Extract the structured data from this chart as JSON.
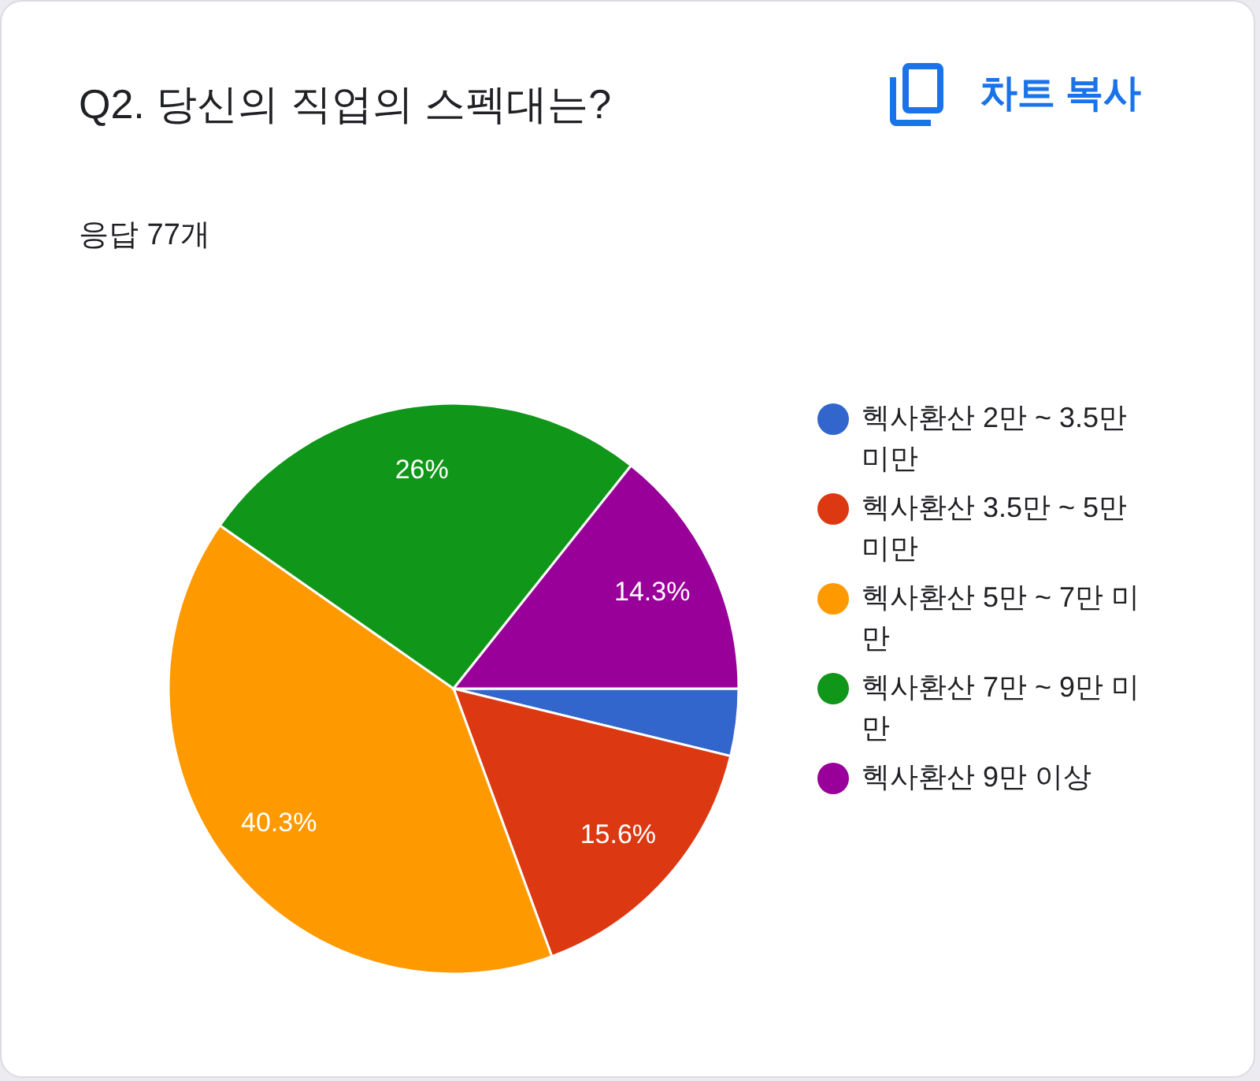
{
  "chart_data": {
    "type": "pie",
    "title": "Q2. 당신의 직업의 스펙대는?",
    "subtitle": "응답 77개",
    "annotations": [
      "차트 복사"
    ],
    "categories": [
      "헥사환산 2만 ~ 3.5만 미만",
      "헥사환산 3.5만 ~ 5만 미만",
      "헥사환산 5만 ~ 7만 미만",
      "헥사환산 7만 ~ 9만 미만",
      "헥사환산 9만 이상"
    ],
    "values": [
      3.8,
      15.6,
      40.3,
      26,
      14.3
    ],
    "value_labels": [
      null,
      "15.6%",
      "40.3%",
      "26%",
      "14.3%"
    ],
    "colors": [
      "#3366cc",
      "#dc3912",
      "#ff9900",
      "#109618",
      "#990099"
    ],
    "legend": "right"
  }
}
